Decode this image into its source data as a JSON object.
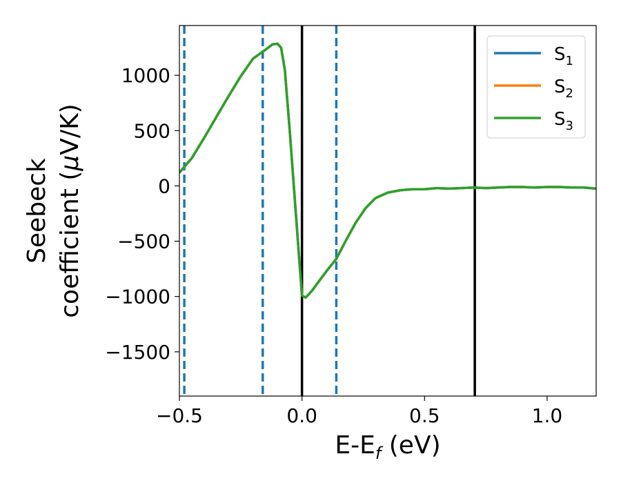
{
  "chart_data": {
    "type": "line",
    "title": "",
    "xlabel": "E-E",
    "xlabel_sub": "f",
    "xlabel_unit": " (eV)",
    "ylabel_line1": "Seebeck",
    "ylabel_line2": "coefficient  (",
    "ylabel_mu": "μ",
    "ylabel_unit": "V/K)",
    "xlim": [
      -0.5,
      1.2
    ],
    "ylim": [
      -1900,
      1450
    ],
    "xticks": [
      -0.5,
      0.0,
      0.5,
      1.0
    ],
    "xtick_labels": [
      "−0.5",
      "0.0",
      "0.5",
      "1.0"
    ],
    "yticks": [
      1000,
      500,
      0,
      -500,
      -1000,
      -1500
    ],
    "ytick_labels": [
      "1000",
      "500",
      "0",
      "−500",
      "−1000",
      "−1500"
    ],
    "grid": false,
    "legend_position": "top-right",
    "vlines_solid": [
      0.0,
      0.705
    ],
    "vlines_dashed": [
      -0.48,
      -0.16,
      0.14
    ],
    "vline_solid_color": "#000000",
    "vline_dashed_color": "#1f77b4",
    "series": [
      {
        "name": "S",
        "sub": "1",
        "color": "#1f77b4",
        "x": [
          -0.5,
          -0.45,
          -0.4,
          -0.35,
          -0.3,
          -0.25,
          -0.2,
          -0.15,
          -0.12,
          -0.1,
          -0.085,
          -0.07,
          -0.05,
          -0.03,
          -0.01,
          0.0,
          0.015,
          0.04,
          0.07,
          0.1,
          0.14,
          0.18,
          0.22,
          0.26,
          0.3,
          0.35,
          0.4,
          0.45,
          0.5,
          0.55,
          0.6,
          0.65,
          0.7,
          0.75,
          0.8,
          0.85,
          0.9,
          0.95,
          1.0,
          1.05,
          1.1,
          1.15,
          1.2
        ],
        "y": [
          120,
          250,
          430,
          620,
          810,
          990,
          1150,
          1230,
          1280,
          1285,
          1250,
          1050,
          500,
          -100,
          -700,
          -990,
          -1010,
          -950,
          -860,
          -770,
          -660,
          -490,
          -330,
          -200,
          -110,
          -60,
          -40,
          -30,
          -30,
          -20,
          -25,
          -20,
          -15,
          -20,
          -15,
          -10,
          -10,
          -15,
          -10,
          -10,
          -15,
          -15,
          -25
        ]
      },
      {
        "name": "S",
        "sub": "2",
        "color": "#ff7f0e",
        "x": [
          -0.5,
          -0.45,
          -0.4,
          -0.35,
          -0.3,
          -0.25,
          -0.2,
          -0.15,
          -0.12,
          -0.1,
          -0.085,
          -0.07,
          -0.05,
          -0.03,
          -0.01,
          0.0,
          0.015,
          0.04,
          0.07,
          0.1,
          0.14,
          0.18,
          0.22,
          0.26,
          0.3,
          0.35,
          0.4,
          0.45,
          0.5,
          0.55,
          0.6,
          0.65,
          0.7,
          0.75,
          0.8,
          0.85,
          0.9,
          0.95,
          1.0,
          1.05,
          1.1,
          1.15,
          1.2
        ],
        "y": [
          120,
          250,
          430,
          620,
          810,
          990,
          1150,
          1230,
          1280,
          1285,
          1250,
          1050,
          500,
          -100,
          -700,
          -990,
          -1010,
          -950,
          -860,
          -770,
          -660,
          -490,
          -330,
          -200,
          -110,
          -60,
          -40,
          -30,
          -30,
          -20,
          -25,
          -20,
          -15,
          -20,
          -15,
          -10,
          -10,
          -15,
          -10,
          -10,
          -15,
          -15,
          -25
        ]
      },
      {
        "name": "S",
        "sub": "3",
        "color": "#2ca02c",
        "x": [
          -0.5,
          -0.45,
          -0.4,
          -0.35,
          -0.3,
          -0.25,
          -0.2,
          -0.15,
          -0.12,
          -0.1,
          -0.085,
          -0.07,
          -0.05,
          -0.03,
          -0.01,
          0.0,
          0.015,
          0.04,
          0.07,
          0.1,
          0.14,
          0.18,
          0.22,
          0.26,
          0.3,
          0.35,
          0.4,
          0.45,
          0.5,
          0.55,
          0.6,
          0.65,
          0.7,
          0.75,
          0.8,
          0.85,
          0.9,
          0.95,
          1.0,
          1.05,
          1.1,
          1.15,
          1.2
        ],
        "y": [
          120,
          250,
          430,
          620,
          810,
          990,
          1150,
          1230,
          1280,
          1285,
          1250,
          1050,
          500,
          -100,
          -700,
          -990,
          -1010,
          -950,
          -860,
          -770,
          -660,
          -490,
          -330,
          -200,
          -110,
          -60,
          -40,
          -30,
          -30,
          -20,
          -25,
          -20,
          -15,
          -20,
          -15,
          -10,
          -10,
          -15,
          -10,
          -10,
          -15,
          -15,
          -25
        ]
      }
    ]
  }
}
